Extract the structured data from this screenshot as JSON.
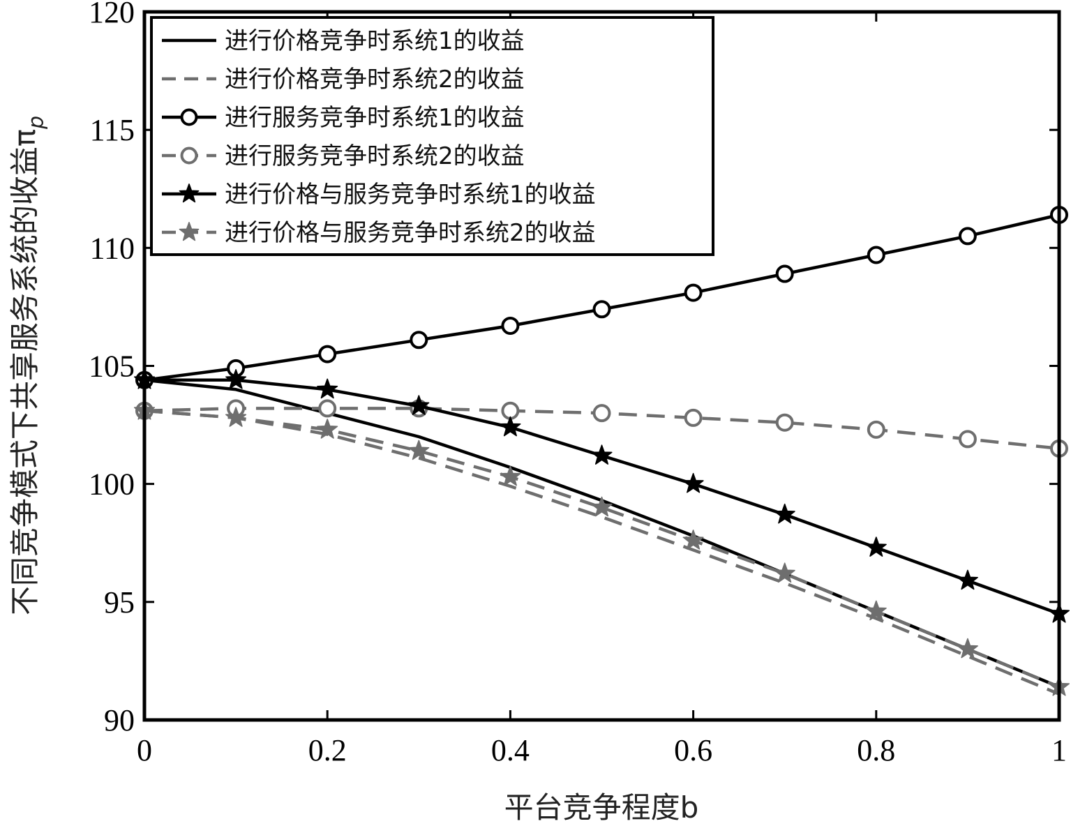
{
  "chart_data": {
    "type": "line",
    "title": "",
    "xlabel": "平台竞争程度b",
    "ylabel": "不同竞争模式下共享服务系统的收益π",
    "ylabel_subscript": "p",
    "xlim": [
      0,
      1
    ],
    "ylim": [
      90,
      120
    ],
    "x_ticks": [
      0,
      0.2,
      0.4,
      0.6,
      0.8,
      1
    ],
    "x_tick_labels": [
      "0",
      "0.2",
      "0.4",
      "0.6",
      "0.8",
      "1"
    ],
    "y_ticks": [
      90,
      95,
      100,
      105,
      110,
      115,
      120
    ],
    "y_tick_labels": [
      "90",
      "95",
      "100",
      "105",
      "110",
      "115",
      "120"
    ],
    "grid": false,
    "legend_position": "top-left",
    "x": [
      0,
      0.1,
      0.2,
      0.3,
      0.4,
      0.5,
      0.6,
      0.7,
      0.8,
      0.9,
      1
    ],
    "series": [
      {
        "name": "进行价格竞争时系统1的收益",
        "color": "#000000",
        "dash": "solid",
        "marker": "none",
        "values": [
          104.4,
          104.0,
          103.0,
          102.0,
          100.7,
          99.3,
          97.8,
          96.2,
          94.6,
          93.0,
          91.4
        ]
      },
      {
        "name": "进行价格竞争时系统2的收益",
        "color": "#6e6e6e",
        "dash": "dashed",
        "marker": "none",
        "values": [
          103.1,
          102.8,
          102.1,
          101.1,
          99.9,
          98.6,
          97.2,
          95.8,
          94.3,
          92.7,
          91.1
        ]
      },
      {
        "name": "进行服务竞争时系统1的收益",
        "color": "#000000",
        "dash": "solid",
        "marker": "circle",
        "values": [
          104.4,
          104.9,
          105.5,
          106.1,
          106.7,
          107.4,
          108.1,
          108.9,
          109.7,
          110.5,
          111.4
        ]
      },
      {
        "name": "进行服务竞争时系统2的收益",
        "color": "#6e6e6e",
        "dash": "dashed",
        "marker": "circle",
        "values": [
          103.1,
          103.2,
          103.2,
          103.2,
          103.1,
          103.0,
          102.8,
          102.6,
          102.3,
          101.9,
          101.5
        ]
      },
      {
        "name": "进行价格与服务竞争时系统1的收益",
        "color": "#000000",
        "dash": "solid",
        "marker": "star",
        "values": [
          104.4,
          104.4,
          104.0,
          103.3,
          102.4,
          101.2,
          100.0,
          98.7,
          97.3,
          95.9,
          94.5
        ]
      },
      {
        "name": "进行价格与服务竞争时系统2的收益",
        "color": "#6e6e6e",
        "dash": "dashed",
        "marker": "star",
        "values": [
          103.1,
          102.8,
          102.3,
          101.4,
          100.3,
          99.0,
          97.6,
          96.2,
          94.6,
          93.0,
          91.4
        ]
      }
    ]
  }
}
